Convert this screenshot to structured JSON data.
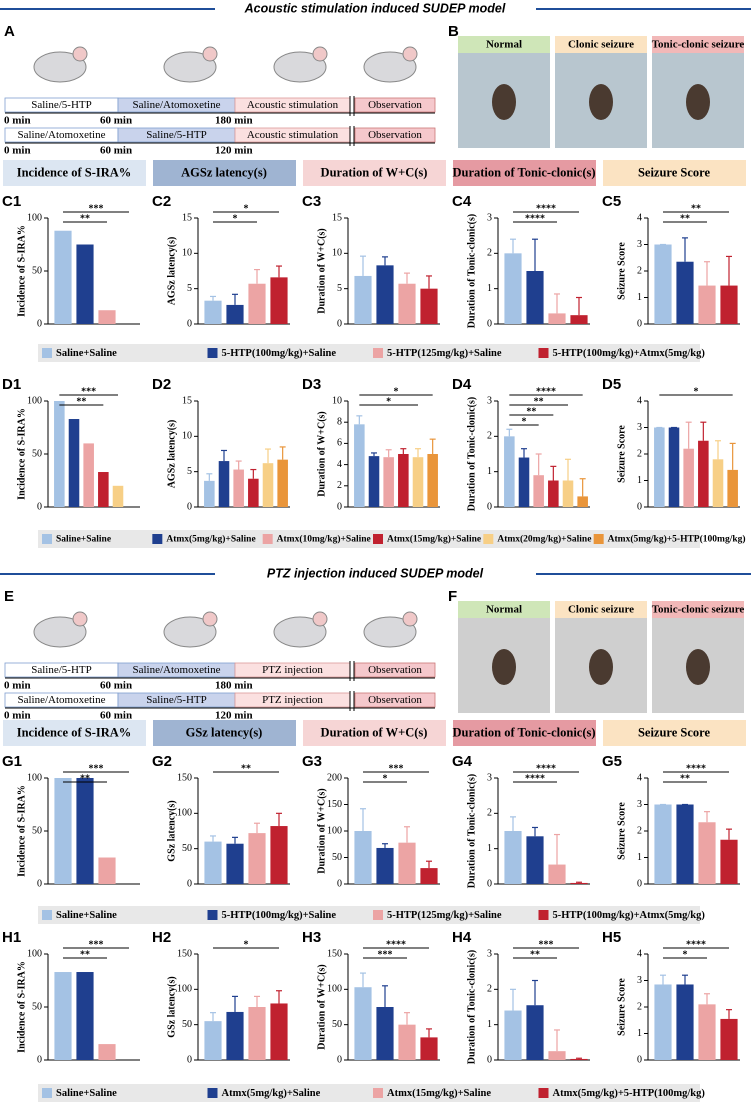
{
  "sections": [
    {
      "title": "Acoustic stimulation induced SUDEP model",
      "timeline_panel": "A",
      "photo_panel": "B",
      "timeline": [
        {
          "segments": [
            "Saline/5-HTP",
            "Saline/Atomoxetine",
            "Acoustic stimulation",
            "Observation"
          ],
          "times": [
            "0 min",
            "60 min",
            "180 min"
          ]
        },
        {
          "segments": [
            "Saline/Atomoxetine",
            "Saline/5-HTP",
            "Acoustic stimulation",
            "Observation"
          ],
          "times": [
            "0 min",
            "60 min",
            "120 min"
          ]
        }
      ],
      "photos": [
        "Normal",
        "Clonic seizure",
        "Tonic-clonic seizure"
      ],
      "measures": [
        "Incidence of S-IRA%",
        "AGSz latency(s)",
        "Duration of W+C(s)",
        "Duration of Tonic-clonic(s)",
        "Seizure Score"
      ]
    },
    {
      "title": "PTZ injection induced SUDEP model",
      "timeline_panel": "E",
      "photo_panel": "F",
      "timeline": [
        {
          "segments": [
            "Saline/5-HTP",
            "Saline/Atomoxetine",
            "PTZ injection",
            "Observation"
          ],
          "times": [
            "0 min",
            "60 min",
            "180 min"
          ]
        },
        {
          "segments": [
            "Saline/Atomoxetine",
            "Saline/5-HTP",
            "PTZ injection",
            "Observation"
          ],
          "times": [
            "0 min",
            "60 min",
            "120 min"
          ]
        }
      ],
      "photos": [
        "Normal",
        "Clonic seizure",
        "Tonic-clonic seizure"
      ],
      "measures": [
        "Incidence of S-IRA%",
        "GSz latency(s)",
        "Duration of W+C(s)",
        "Duration of Tonic-clonic(s)",
        "Seizure Score"
      ]
    }
  ],
  "legends": [
    {
      "names": [
        "Saline+Saline",
        "5-HTP(100mg/kg)+Saline",
        "5-HTP(125mg/kg)+Saline",
        "5-HTP(100mg/kg)+Atmx(5mg/kg)"
      ],
      "colors": [
        "#a4c2e4",
        "#1f3f8f",
        "#eca4a4",
        "#c0212f"
      ]
    },
    {
      "names": [
        "Saline+Saline",
        "Atmx(5mg/kg)+Saline",
        "Atmx(10mg/kg)+Saline",
        "Atmx(15mg/kg)+Saline",
        "Atmx(20mg/kg)+Saline",
        "Atmx(5mg/kg)+5-HTP(100mg/kg)"
      ],
      "colors": [
        "#a4c2e4",
        "#1f3f8f",
        "#eca4a4",
        "#c0212f",
        "#f7cf86",
        "#e9953a"
      ]
    },
    {
      "names": [
        "Saline+Saline",
        "5-HTP(100mg/kg)+Saline",
        "5-HTP(125mg/kg)+Saline",
        "5-HTP(100mg/kg)+Atmx(5mg/kg)"
      ],
      "colors": [
        "#a4c2e4",
        "#1f3f8f",
        "#eca4a4",
        "#c0212f"
      ]
    },
    {
      "names": [
        "Saline+Saline",
        "Atmx(5mg/kg)+Saline",
        "Atmx(15mg/kg)+Saline",
        "Atmx(5mg/kg)+5-HTP(100mg/kg)"
      ],
      "colors": [
        "#a4c2e4",
        "#1f3f8f",
        "#eca4a4",
        "#c0212f"
      ]
    }
  ],
  "chart_data": [
    {
      "type": "bar",
      "panel": "C1",
      "ylabel": "Incidence of S-IRA%",
      "values": [
        88,
        75,
        13,
        0
      ],
      "colors": [
        "#a4c2e4",
        "#1f3f8f",
        "#eca4a4",
        "#c0212f"
      ],
      "ylim": [
        0,
        100
      ],
      "yticks": [
        0,
        50,
        100
      ],
      "annotations": [
        {
          "text": "***",
          "compare": [
            0,
            3
          ]
        },
        {
          "text": "**",
          "compare": [
            0,
            2
          ]
        }
      ]
    },
    {
      "type": "bar",
      "panel": "C2",
      "ylabel": "AGSz latency(s)",
      "values": [
        3.3,
        2.7,
        5.7,
        6.6
      ],
      "errors": [
        0.6,
        1.5,
        2,
        1.6
      ],
      "colors": [
        "#a4c2e4",
        "#1f3f8f",
        "#eca4a4",
        "#c0212f"
      ],
      "ylim": [
        0,
        15
      ],
      "yticks": [
        0,
        5,
        10,
        15
      ],
      "annotations": [
        {
          "text": "*",
          "compare": [
            0,
            3
          ]
        },
        {
          "text": "*",
          "compare": [
            0,
            2
          ]
        }
      ]
    },
    {
      "type": "bar",
      "panel": "C3",
      "ylabel": "Duration of W+C(s)",
      "values": [
        6.8,
        8.3,
        5.7,
        5.0
      ],
      "errors": [
        2.8,
        1.2,
        1.5,
        1.8
      ],
      "colors": [
        "#a4c2e4",
        "#1f3f8f",
        "#eca4a4",
        "#c0212f"
      ],
      "ylim": [
        0,
        15
      ],
      "yticks": [
        0,
        5,
        10,
        15
      ],
      "annotations": []
    },
    {
      "type": "bar",
      "panel": "C4",
      "ylabel": "Duration of Tonic-clonic(s)",
      "values": [
        2.0,
        1.5,
        0.3,
        0.25
      ],
      "errors": [
        0.4,
        0.9,
        0.55,
        0.5
      ],
      "colors": [
        "#a4c2e4",
        "#1f3f8f",
        "#eca4a4",
        "#c0212f"
      ],
      "ylim": [
        0,
        3
      ],
      "yticks": [
        0,
        1,
        2,
        3
      ],
      "annotations": [
        {
          "text": "****",
          "compare": [
            0,
            3
          ]
        },
        {
          "text": "****",
          "compare": [
            0,
            2
          ]
        }
      ]
    },
    {
      "type": "bar",
      "panel": "C5",
      "ylabel": "Seizure Score",
      "values": [
        3,
        2.35,
        1.45,
        1.45
      ],
      "errors": [
        0,
        0.9,
        0.9,
        1.1
      ],
      "colors": [
        "#a4c2e4",
        "#1f3f8f",
        "#eca4a4",
        "#c0212f"
      ],
      "ylim": [
        0,
        4
      ],
      "yticks": [
        0,
        1,
        2,
        3,
        4
      ],
      "annotations": [
        {
          "text": "**",
          "compare": [
            0,
            3
          ]
        },
        {
          "text": "**",
          "compare": [
            0,
            2
          ]
        }
      ]
    },
    {
      "type": "bar",
      "panel": "D1",
      "ylabel": "Incidence of S-IRA%",
      "values": [
        100,
        83,
        60,
        33,
        20,
        0
      ],
      "colors": [
        "#a4c2e4",
        "#1f3f8f",
        "#eca4a4",
        "#c0212f",
        "#f7cf86",
        "#e9953a"
      ],
      "ylim": [
        0,
        100
      ],
      "yticks": [
        0,
        50,
        100
      ],
      "annotations": [
        {
          "text": "***",
          "compare": [
            0,
            4
          ]
        },
        {
          "text": "**",
          "compare": [
            0,
            3
          ]
        }
      ]
    },
    {
      "type": "bar",
      "panel": "D2",
      "ylabel": "AGSz latency(s)",
      "values": [
        3.7,
        6.5,
        5.3,
        4.0,
        6.2,
        6.7
      ],
      "errors": [
        1.0,
        1.5,
        1.2,
        1.3,
        2,
        1.8
      ],
      "colors": [
        "#a4c2e4",
        "#1f3f8f",
        "#eca4a4",
        "#c0212f",
        "#f7cf86",
        "#e9953a"
      ],
      "ylim": [
        0,
        15
      ],
      "yticks": [
        0,
        5,
        10,
        15
      ],
      "annotations": []
    },
    {
      "type": "bar",
      "panel": "D3",
      "ylabel": "Duration of W+C(s)",
      "values": [
        7.8,
        4.8,
        4.7,
        5.0,
        4.7,
        5.0
      ],
      "errors": [
        0.8,
        0.3,
        0.7,
        0.5,
        0.8,
        1.4
      ],
      "colors": [
        "#a4c2e4",
        "#1f3f8f",
        "#eca4a4",
        "#c0212f",
        "#f7cf86",
        "#e9953a"
      ],
      "ylim": [
        0,
        10
      ],
      "yticks": [
        0,
        2,
        4,
        6,
        8,
        10
      ],
      "annotations": [
        {
          "text": "*",
          "compare": [
            0,
            5
          ]
        },
        {
          "text": "*",
          "compare": [
            0,
            4
          ]
        }
      ]
    },
    {
      "type": "bar",
      "panel": "D4",
      "ylabel": "Duration of Tonic-clonic(s)",
      "values": [
        2.0,
        1.4,
        0.9,
        0.75,
        0.75,
        0.3
      ],
      "errors": [
        0.2,
        0.25,
        0.6,
        0.4,
        0.6,
        0.5
      ],
      "colors": [
        "#a4c2e4",
        "#1f3f8f",
        "#eca4a4",
        "#c0212f",
        "#f7cf86",
        "#e9953a"
      ],
      "ylim": [
        0,
        3
      ],
      "yticks": [
        0,
        1,
        2,
        3
      ],
      "annotations": [
        {
          "text": "****",
          "compare": [
            0,
            5
          ]
        },
        {
          "text": "**",
          "compare": [
            0,
            4
          ]
        },
        {
          "text": "**",
          "compare": [
            0,
            3
          ]
        },
        {
          "text": "*",
          "compare": [
            0,
            2
          ]
        }
      ]
    },
    {
      "type": "bar",
      "panel": "D5",
      "ylabel": "Seizure Score",
      "values": [
        3,
        3,
        2.2,
        2.5,
        1.8,
        1.4
      ],
      "errors": [
        0,
        0,
        1,
        0.7,
        0.7,
        1
      ],
      "colors": [
        "#a4c2e4",
        "#1f3f8f",
        "#eca4a4",
        "#c0212f",
        "#f7cf86",
        "#e9953a"
      ],
      "ylim": [
        0,
        4
      ],
      "yticks": [
        0,
        1,
        2,
        3,
        4
      ],
      "annotations": [
        {
          "text": "*",
          "compare": [
            0,
            5
          ]
        }
      ]
    },
    {
      "type": "bar",
      "panel": "G1",
      "ylabel": "Incidence of S-IRA%",
      "values": [
        100,
        100,
        25,
        0
      ],
      "colors": [
        "#a4c2e4",
        "#1f3f8f",
        "#eca4a4",
        "#c0212f"
      ],
      "ylim": [
        0,
        100
      ],
      "yticks": [
        0,
        50,
        100
      ],
      "annotations": [
        {
          "text": "***",
          "compare": [
            0,
            3
          ]
        },
        {
          "text": "**",
          "compare": [
            0,
            2
          ]
        }
      ]
    },
    {
      "type": "bar",
      "panel": "G2",
      "ylabel": "GSz latency(s)",
      "values": [
        60,
        57,
        72,
        82
      ],
      "errors": [
        8,
        9,
        14,
        18
      ],
      "colors": [
        "#a4c2e4",
        "#1f3f8f",
        "#eca4a4",
        "#c0212f"
      ],
      "ylim": [
        0,
        150
      ],
      "yticks": [
        0,
        50,
        100,
        150
      ],
      "annotations": [
        {
          "text": "**",
          "compare": [
            0,
            3
          ]
        }
      ]
    },
    {
      "type": "bar",
      "panel": "G3",
      "ylabel": "Duration of W+C(s)",
      "values": [
        100,
        68,
        78,
        30
      ],
      "errors": [
        42,
        8,
        30,
        13
      ],
      "colors": [
        "#a4c2e4",
        "#1f3f8f",
        "#eca4a4",
        "#c0212f"
      ],
      "ylim": [
        0,
        200
      ],
      "yticks": [
        0,
        50,
        100,
        150,
        200
      ],
      "annotations": [
        {
          "text": "***",
          "compare": [
            0,
            3
          ]
        },
        {
          "text": "*",
          "compare": [
            0,
            2
          ]
        }
      ]
    },
    {
      "type": "bar",
      "panel": "G4",
      "ylabel": "Duration of Tonic-clonic(s)",
      "values": [
        1.5,
        1.35,
        0.55,
        0.03
      ],
      "errors": [
        0.4,
        0.25,
        0.85,
        0.02
      ],
      "colors": [
        "#a4c2e4",
        "#1f3f8f",
        "#eca4a4",
        "#c0212f"
      ],
      "ylim": [
        0,
        3
      ],
      "yticks": [
        0,
        1,
        2,
        3
      ],
      "annotations": [
        {
          "text": "****",
          "compare": [
            0,
            3
          ]
        },
        {
          "text": "****",
          "compare": [
            0,
            2
          ]
        }
      ]
    },
    {
      "type": "bar",
      "panel": "G5",
      "ylabel": "Seizure Score",
      "values": [
        3,
        3,
        2.33,
        1.67
      ],
      "errors": [
        0,
        0,
        0.4,
        0.4
      ],
      "colors": [
        "#a4c2e4",
        "#1f3f8f",
        "#eca4a4",
        "#c0212f"
      ],
      "ylim": [
        0,
        4
      ],
      "yticks": [
        0,
        1,
        2,
        3,
        4
      ],
      "annotations": [
        {
          "text": "****",
          "compare": [
            0,
            3
          ]
        },
        {
          "text": "**",
          "compare": [
            0,
            2
          ]
        }
      ]
    },
    {
      "type": "bar",
      "panel": "H1",
      "ylabel": "Incidence of S-IRA%",
      "values": [
        83,
        83,
        15,
        0
      ],
      "colors": [
        "#a4c2e4",
        "#1f3f8f",
        "#eca4a4",
        "#c0212f"
      ],
      "ylim": [
        0,
        100
      ],
      "yticks": [
        0,
        50,
        100
      ],
      "annotations": [
        {
          "text": "***",
          "compare": [
            0,
            3
          ]
        },
        {
          "text": "**",
          "compare": [
            0,
            2
          ]
        }
      ]
    },
    {
      "type": "bar",
      "panel": "H2",
      "ylabel": "GSz latency(s)",
      "values": [
        55,
        68,
        75,
        80
      ],
      "errors": [
        12,
        22,
        15,
        18
      ],
      "colors": [
        "#a4c2e4",
        "#1f3f8f",
        "#eca4a4",
        "#c0212f"
      ],
      "ylim": [
        0,
        150
      ],
      "yticks": [
        0,
        50,
        100,
        150
      ],
      "annotations": [
        {
          "text": "*",
          "compare": [
            0,
            3
          ]
        }
      ]
    },
    {
      "type": "bar",
      "panel": "H3",
      "ylabel": "Duration of W+C(s)",
      "values": [
        103,
        75,
        50,
        32
      ],
      "errors": [
        20,
        30,
        17,
        12
      ],
      "colors": [
        "#a4c2e4",
        "#1f3f8f",
        "#eca4a4",
        "#c0212f"
      ],
      "ylim": [
        0,
        150
      ],
      "yticks": [
        0,
        50,
        100,
        150
      ],
      "annotations": [
        {
          "text": "****",
          "compare": [
            0,
            3
          ]
        },
        {
          "text": "***",
          "compare": [
            0,
            2
          ]
        }
      ]
    },
    {
      "type": "bar",
      "panel": "H4",
      "ylabel": "Duration of Tonic-clonic(s)",
      "values": [
        1.4,
        1.55,
        0.25,
        0.03
      ],
      "errors": [
        0.6,
        0.7,
        0.6,
        0.02
      ],
      "colors": [
        "#a4c2e4",
        "#1f3f8f",
        "#eca4a4",
        "#c0212f"
      ],
      "ylim": [
        0,
        3
      ],
      "yticks": [
        0,
        1,
        2,
        3
      ],
      "annotations": [
        {
          "text": "***",
          "compare": [
            0,
            3
          ]
        },
        {
          "text": "**",
          "compare": [
            0,
            2
          ]
        }
      ]
    },
    {
      "type": "bar",
      "panel": "H5",
      "ylabel": "Seizure Score",
      "values": [
        2.85,
        2.85,
        2.1,
        1.55
      ],
      "errors": [
        0.35,
        0.35,
        0.4,
        0.35
      ],
      "colors": [
        "#a4c2e4",
        "#1f3f8f",
        "#eca4a4",
        "#c0212f"
      ],
      "ylim": [
        0,
        4
      ],
      "yticks": [
        0,
        1,
        2,
        3,
        4
      ],
      "annotations": [
        {
          "text": "****",
          "compare": [
            0,
            3
          ]
        },
        {
          "text": "*",
          "compare": [
            0,
            2
          ]
        }
      ]
    }
  ]
}
